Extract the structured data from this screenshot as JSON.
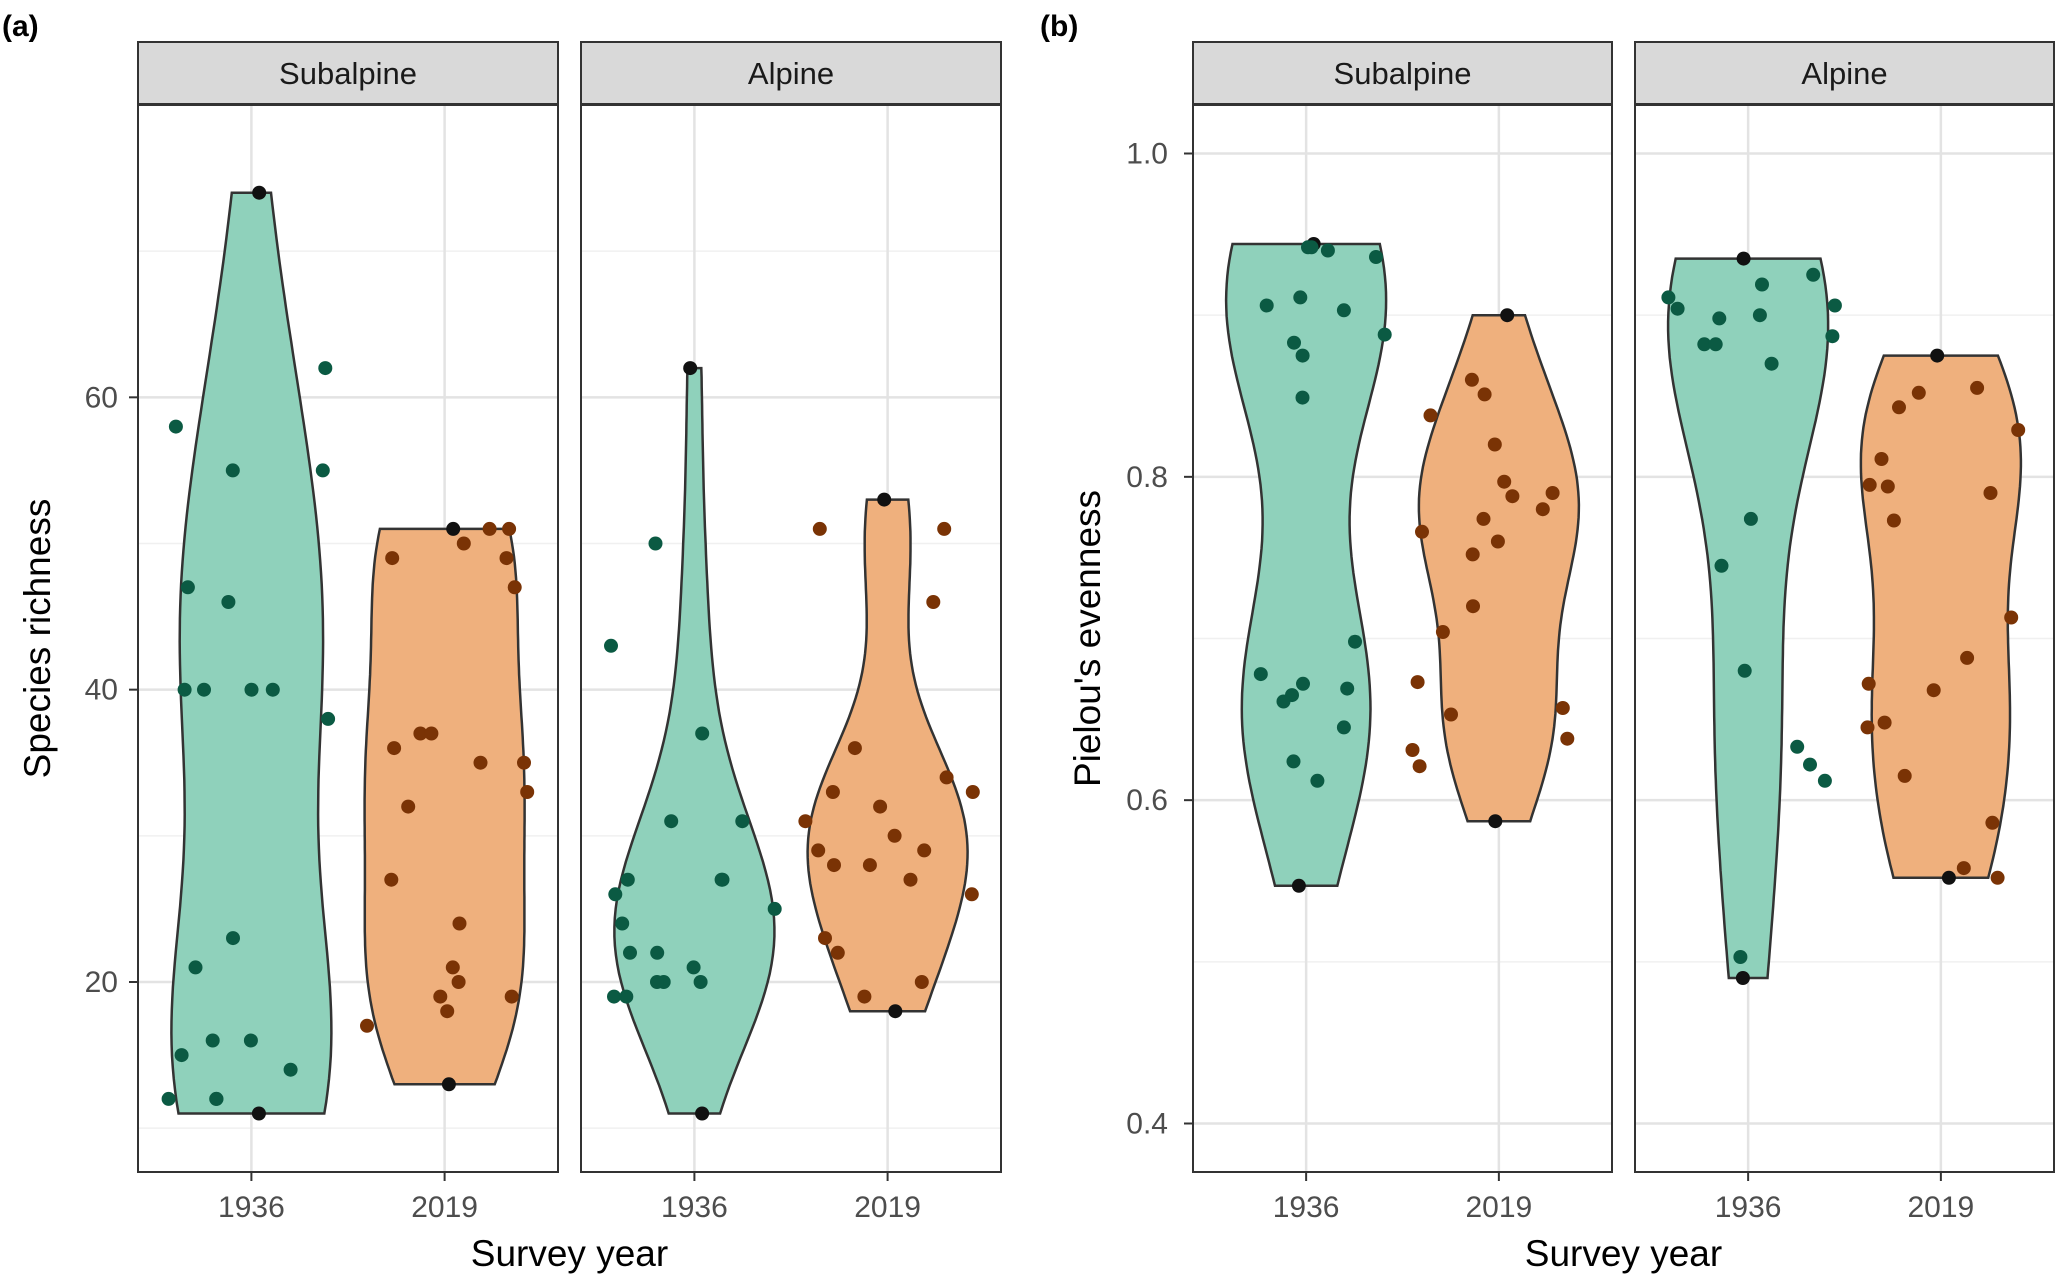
{
  "chart_data": [
    {
      "type": "violin",
      "tag": "(a)",
      "ylabel": "Species richness",
      "xlabel": "Survey year",
      "categories": [
        "1936",
        "2019"
      ],
      "ylim": [
        7,
        80
      ],
      "yticks": [
        20,
        40,
        60
      ],
      "grid": true,
      "colors": {
        "1936": "#1b9e77",
        "2019": "#d95f02"
      },
      "facets": [
        {
          "name": "Subalpine",
          "groups": [
            {
              "year": "1936",
              "range": [
                11,
                74
              ],
              "points": [
                74,
                62,
                58,
                55,
                55,
                47,
                46,
                40,
                40,
                40,
                40,
                38,
                23,
                21,
                16,
                16,
                15,
                14,
                12,
                12,
                12,
                11
              ]
            },
            {
              "year": "2019",
              "range": [
                13,
                51
              ],
              "points": [
                51,
                51,
                51,
                50,
                49,
                49,
                47,
                37,
                37,
                36,
                35,
                35,
                33,
                32,
                27,
                24,
                21,
                20,
                19,
                19,
                18,
                17,
                13
              ]
            }
          ]
        },
        {
          "name": "Alpine",
          "groups": [
            {
              "year": "1936",
              "range": [
                11,
                62
              ],
              "points": [
                62,
                50,
                43,
                37,
                31,
                31,
                27,
                27,
                27,
                26,
                25,
                24,
                22,
                22,
                21,
                20,
                20,
                20,
                19,
                19,
                11
              ]
            },
            {
              "year": "2019",
              "range": [
                18,
                53
              ],
              "points": [
                53,
                51,
                51,
                46,
                36,
                34,
                33,
                33,
                32,
                31,
                30,
                29,
                29,
                28,
                28,
                27,
                26,
                23,
                22,
                20,
                19,
                18
              ]
            }
          ]
        }
      ]
    },
    {
      "type": "violin",
      "tag": "(b)",
      "ylabel": "Pielou's evenness",
      "xlabel": "Survey year",
      "categories": [
        "1936",
        "2019"
      ],
      "ylim": [
        0.37,
        1.03
      ],
      "yticks": [
        0.4,
        0.6,
        0.8,
        1.0
      ],
      "grid": true,
      "colors": {
        "1936": "#1b9e77",
        "2019": "#d95f02"
      },
      "facets": [
        {
          "name": "Subalpine",
          "groups": [
            {
              "year": "1936",
              "range": [
                0.547,
                0.944
              ],
              "points": [
                0.944,
                0.942,
                0.94,
                0.936,
                0.942,
                0.911,
                0.906,
                0.903,
                0.888,
                0.883,
                0.875,
                0.849,
                0.698,
                0.678,
                0.672,
                0.669,
                0.665,
                0.661,
                0.645,
                0.624,
                0.612,
                0.547
              ]
            },
            {
              "year": "2019",
              "range": [
                0.587,
                0.9
              ],
              "points": [
                0.9,
                0.86,
                0.851,
                0.838,
                0.82,
                0.797,
                0.79,
                0.788,
                0.78,
                0.774,
                0.766,
                0.76,
                0.752,
                0.72,
                0.704,
                0.673,
                0.657,
                0.653,
                0.638,
                0.631,
                0.621,
                0.587
              ]
            }
          ]
        },
        {
          "name": "Alpine",
          "groups": [
            {
              "year": "1936",
              "range": [
                0.49,
                0.935
              ],
              "points": [
                0.935,
                0.925,
                0.919,
                0.911,
                0.906,
                0.904,
                0.9,
                0.898,
                0.887,
                0.882,
                0.882,
                0.87,
                0.774,
                0.745,
                0.68,
                0.633,
                0.622,
                0.612,
                0.503,
                0.49
              ]
            },
            {
              "year": "2019",
              "range": [
                0.552,
                0.875
              ],
              "points": [
                0.875,
                0.855,
                0.852,
                0.843,
                0.829,
                0.811,
                0.795,
                0.794,
                0.79,
                0.773,
                0.713,
                0.688,
                0.672,
                0.668,
                0.648,
                0.645,
                0.615,
                0.586,
                0.558,
                0.552,
                0.552
              ]
            }
          ]
        }
      ]
    }
  ]
}
